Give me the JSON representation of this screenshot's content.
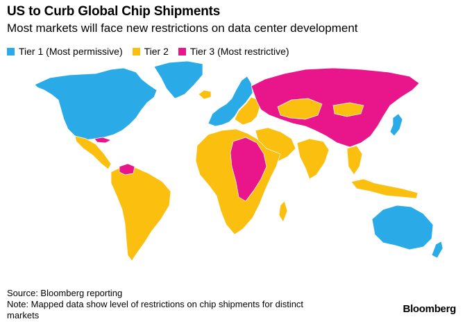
{
  "title": "US to Curb Global Chip Shipments",
  "subtitle": "Most markets will face new restrictions on data center development",
  "legend": [
    {
      "label": "Tier 1 (Most permissive)",
      "color": "#2AABE8"
    },
    {
      "label": "Tier 2",
      "color": "#FBBF0F"
    },
    {
      "label": "Tier 3 (Most restrictive)",
      "color": "#E8168A"
    }
  ],
  "colors": {
    "tier1": "#2AABE8",
    "tier2": "#FBBF0F",
    "tier3": "#E8168A",
    "border": "#ffffff"
  },
  "source": "Source: Bloomberg reporting",
  "note": "Note: Mapped data show level of restrictions on chip shipments for distinct markets",
  "brand": "Bloomberg"
}
